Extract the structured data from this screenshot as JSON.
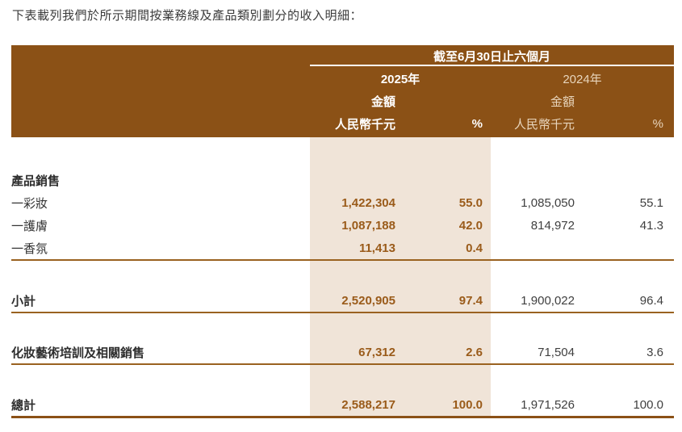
{
  "intro": "下表載列我們於所示期間按業務線及產品類別劃分的收入明細：",
  "table": {
    "period_header": "截至6月30日止六個月",
    "col_groups": [
      {
        "year": "2025年",
        "amount_label": "金額",
        "unit_label": "人民幣千元",
        "pct_label": "%"
      },
      {
        "year": "2024年",
        "amount_label": "金額",
        "unit_label": "人民幣千元",
        "pct_label": "%"
      }
    ],
    "rows": [
      {
        "label": "產品銷售",
        "a25": "",
        "p25": "",
        "a24": "",
        "p24": ""
      },
      {
        "label": "一彩妝",
        "a25": "1,422,304",
        "p25": "55.0",
        "a24": "1,085,050",
        "p24": "55.1"
      },
      {
        "label": "一護膚",
        "a25": "1,087,188",
        "p25": "42.0",
        "a24": "814,972",
        "p24": "41.3"
      },
      {
        "label": "一香氛",
        "a25": "11,413",
        "p25": "0.4",
        "a24": "",
        "p24": ""
      },
      {
        "label": "小計",
        "a25": "2,520,905",
        "p25": "97.4",
        "a24": "1,900,022",
        "p24": "96.4"
      },
      {
        "label": "化妝藝術培訓及相關銷售",
        "a25": "67,312",
        "p25": "2.6",
        "a24": "71,504",
        "p24": "3.6"
      },
      {
        "label": "總計",
        "a25": "2,588,217",
        "p25": "100.0",
        "a24": "1,971,526",
        "p24": "100.0"
      }
    ],
    "colors": {
      "header_bg": "#8B5116",
      "highlight_column_bg": "#F0E4D8",
      "current_year_value_text": "#9A5B1A",
      "rule_line": "#9A6220"
    }
  }
}
